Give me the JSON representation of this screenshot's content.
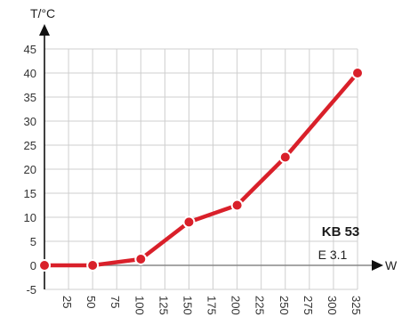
{
  "chart_data": {
    "type": "line",
    "ylabel": "T/°C",
    "xlabel": "W",
    "x_ticks": [
      25,
      50,
      75,
      100,
      125,
      150,
      175,
      200,
      225,
      250,
      275,
      300,
      325
    ],
    "y_ticks": [
      -5,
      0,
      5,
      10,
      15,
      20,
      25,
      30,
      35,
      40,
      45
    ],
    "xlim": [
      0,
      325
    ],
    "ylim": [
      -5,
      45
    ],
    "grid": true,
    "series": [
      {
        "color": "#d9202a",
        "points": [
          {
            "x": 0,
            "y": 0
          },
          {
            "x": 50,
            "y": 0
          },
          {
            "x": 100,
            "y": 1.3
          },
          {
            "x": 150,
            "y": 9
          },
          {
            "x": 200,
            "y": 12.5
          },
          {
            "x": 250,
            "y": 22.5
          },
          {
            "x": 325,
            "y": 40
          }
        ]
      }
    ],
    "annotations": {
      "model": "KB 53",
      "version": "E 3.1"
    }
  }
}
